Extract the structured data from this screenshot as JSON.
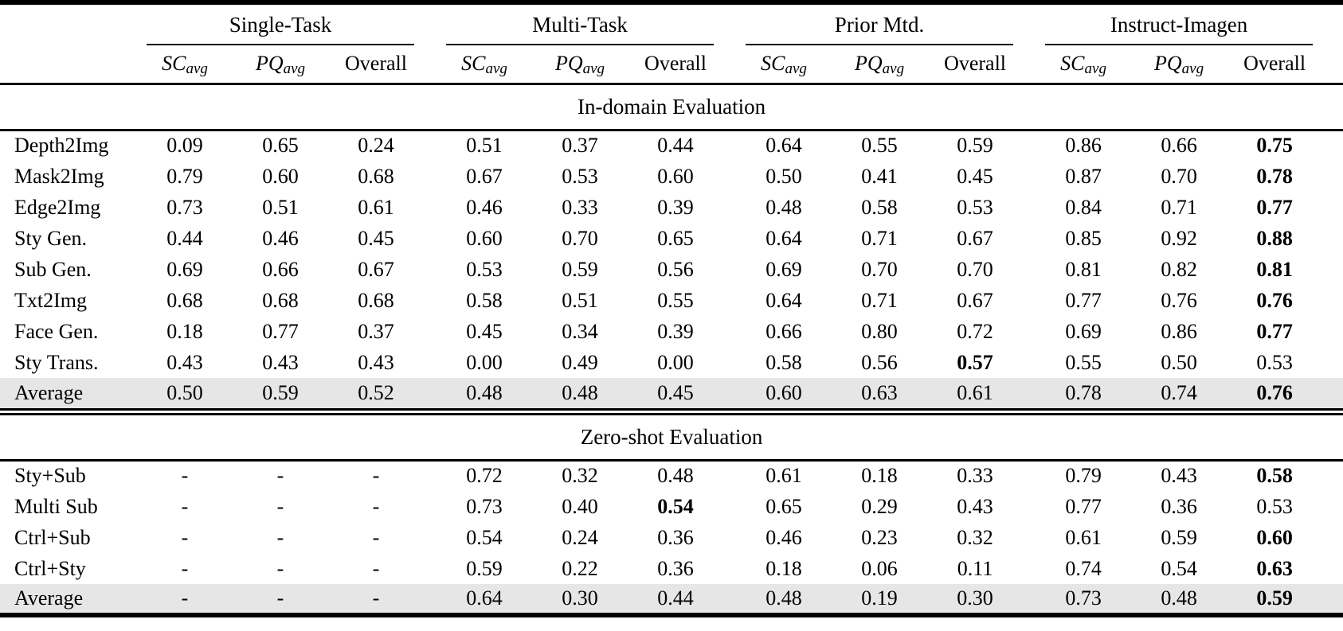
{
  "table": {
    "groups": [
      {
        "label": "Single-Task"
      },
      {
        "label": "Multi-Task"
      },
      {
        "label": "Prior Mtd."
      },
      {
        "label": "Instruct-Imagen"
      }
    ],
    "subheader": {
      "sc": "SC",
      "pq": "PQ",
      "sub": "avg",
      "overall": "Overall"
    },
    "sections": [
      {
        "title": "In-domain Evaluation",
        "rows": [
          {
            "label": "Depth2Img",
            "values": [
              "0.09",
              "0.65",
              "0.24",
              "0.51",
              "0.37",
              "0.44",
              "0.64",
              "0.55",
              "0.59",
              "0.86",
              "0.66",
              "0.75"
            ],
            "bold": [
              11
            ],
            "highlight": false
          },
          {
            "label": "Mask2Img",
            "values": [
              "0.79",
              "0.60",
              "0.68",
              "0.67",
              "0.53",
              "0.60",
              "0.50",
              "0.41",
              "0.45",
              "0.87",
              "0.70",
              "0.78"
            ],
            "bold": [
              11
            ],
            "highlight": false
          },
          {
            "label": "Edge2Img",
            "values": [
              "0.73",
              "0.51",
              "0.61",
              "0.46",
              "0.33",
              "0.39",
              "0.48",
              "0.58",
              "0.53",
              "0.84",
              "0.71",
              "0.77"
            ],
            "bold": [
              11
            ],
            "highlight": false
          },
          {
            "label": "Sty Gen.",
            "values": [
              "0.44",
              "0.46",
              "0.45",
              "0.60",
              "0.70",
              "0.65",
              "0.64",
              "0.71",
              "0.67",
              "0.85",
              "0.92",
              "0.88"
            ],
            "bold": [
              11
            ],
            "highlight": false
          },
          {
            "label": "Sub Gen.",
            "values": [
              "0.69",
              "0.66",
              "0.67",
              "0.53",
              "0.59",
              "0.56",
              "0.69",
              "0.70",
              "0.70",
              "0.81",
              "0.82",
              "0.81"
            ],
            "bold": [
              11
            ],
            "highlight": false
          },
          {
            "label": "Txt2Img",
            "values": [
              "0.68",
              "0.68",
              "0.68",
              "0.58",
              "0.51",
              "0.55",
              "0.64",
              "0.71",
              "0.67",
              "0.77",
              "0.76",
              "0.76"
            ],
            "bold": [
              11
            ],
            "highlight": false
          },
          {
            "label": "Face Gen.",
            "values": [
              "0.18",
              "0.77",
              "0.37",
              "0.45",
              "0.34",
              "0.39",
              "0.66",
              "0.80",
              "0.72",
              "0.69",
              "0.86",
              "0.77"
            ],
            "bold": [
              11
            ],
            "highlight": false
          },
          {
            "label": "Sty Trans.",
            "values": [
              "0.43",
              "0.43",
              "0.43",
              "0.00",
              "0.49",
              "0.00",
              "0.58",
              "0.56",
              "0.57",
              "0.55",
              "0.50",
              "0.53"
            ],
            "bold": [
              8
            ],
            "highlight": false
          },
          {
            "label": "Average",
            "values": [
              "0.50",
              "0.59",
              "0.52",
              "0.48",
              "0.48",
              "0.45",
              "0.60",
              "0.63",
              "0.61",
              "0.78",
              "0.74",
              "0.76"
            ],
            "bold": [
              11
            ],
            "highlight": true
          }
        ]
      },
      {
        "title": "Zero-shot Evaluation",
        "rows": [
          {
            "label": "Sty+Sub",
            "values": [
              "-",
              "-",
              "-",
              "0.72",
              "0.32",
              "0.48",
              "0.61",
              "0.18",
              "0.33",
              "0.79",
              "0.43",
              "0.58"
            ],
            "bold": [
              11
            ],
            "highlight": false
          },
          {
            "label": "Multi Sub",
            "values": [
              "-",
              "-",
              "-",
              "0.73",
              "0.40",
              "0.54",
              "0.65",
              "0.29",
              "0.43",
              "0.77",
              "0.36",
              "0.53"
            ],
            "bold": [
              5
            ],
            "highlight": false
          },
          {
            "label": "Ctrl+Sub",
            "values": [
              "-",
              "-",
              "-",
              "0.54",
              "0.24",
              "0.36",
              "0.46",
              "0.23",
              "0.32",
              "0.61",
              "0.59",
              "0.60"
            ],
            "bold": [
              11
            ],
            "highlight": false
          },
          {
            "label": "Ctrl+Sty",
            "values": [
              "-",
              "-",
              "-",
              "0.59",
              "0.22",
              "0.36",
              "0.18",
              "0.06",
              "0.11",
              "0.74",
              "0.54",
              "0.63"
            ],
            "bold": [
              11
            ],
            "highlight": false
          },
          {
            "label": "Average",
            "values": [
              "-",
              "-",
              "-",
              "0.64",
              "0.30",
              "0.44",
              "0.48",
              "0.19",
              "0.30",
              "0.73",
              "0.48",
              "0.59"
            ],
            "bold": [
              11
            ],
            "highlight": true
          }
        ]
      }
    ]
  }
}
